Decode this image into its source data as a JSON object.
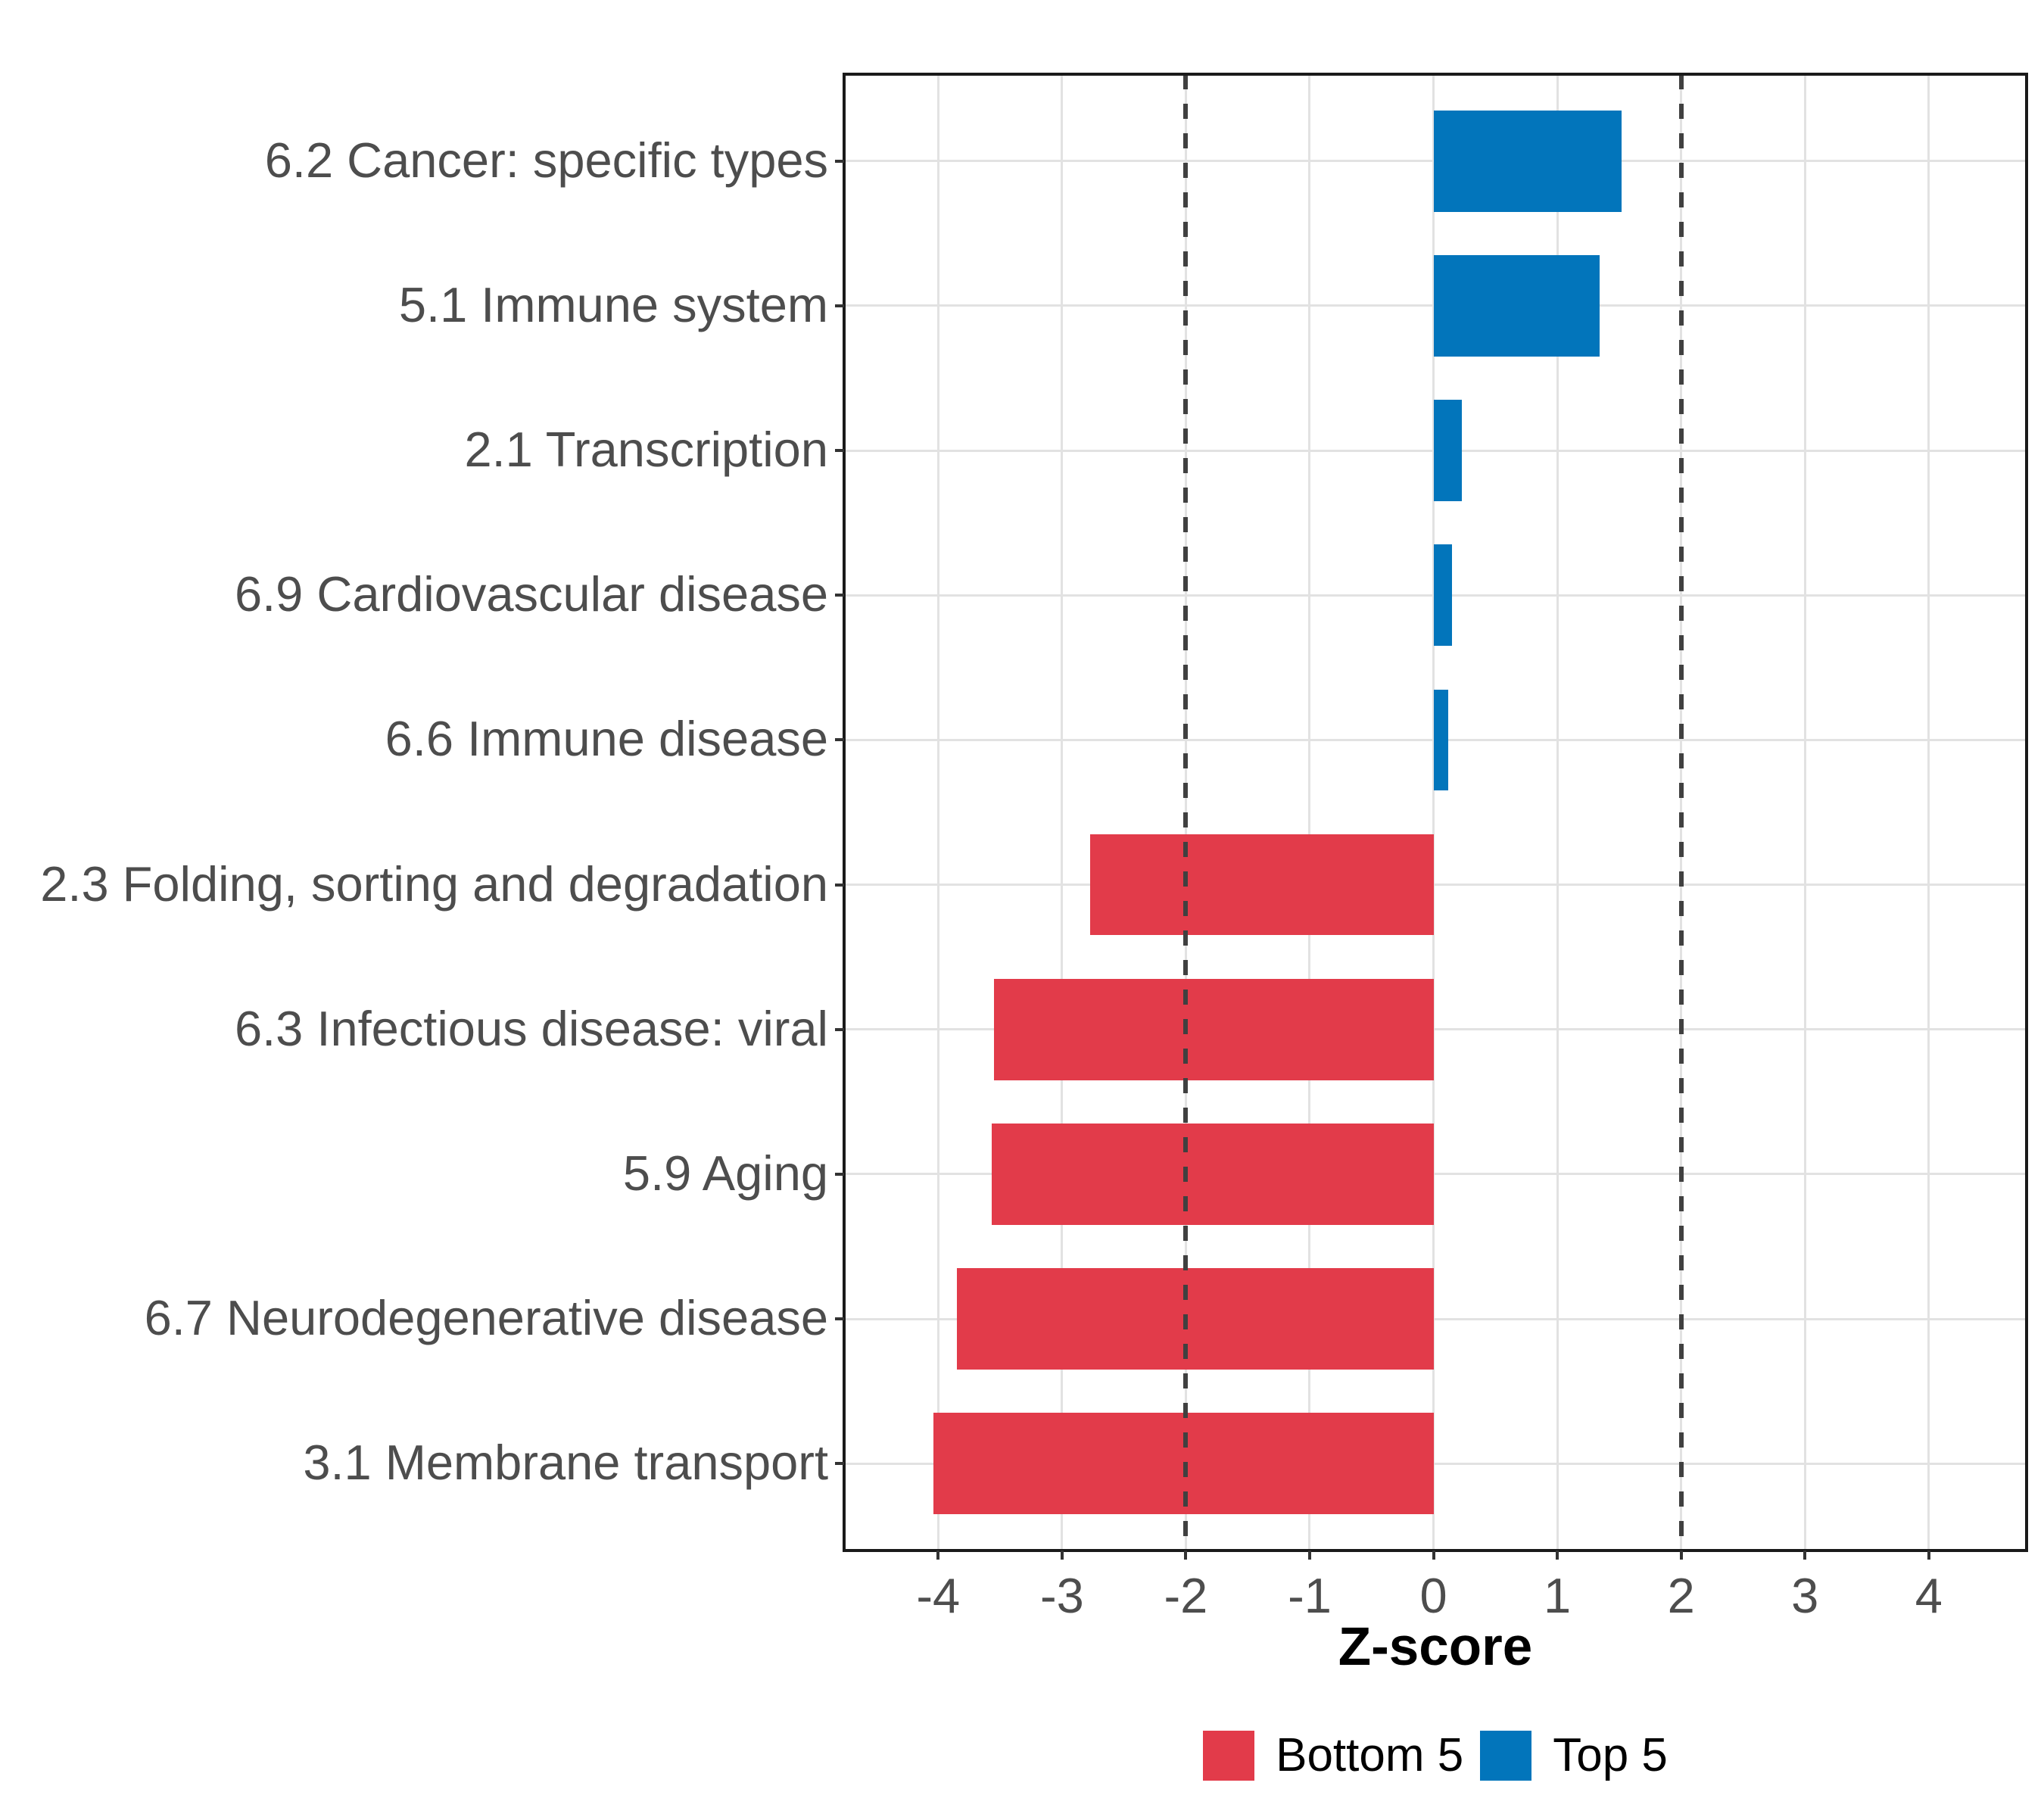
{
  "chart_data": {
    "type": "bar",
    "orientation": "horizontal",
    "title": "",
    "xlabel": "Z-score",
    "ylabel": "",
    "categories": [
      "6.2 Cancer: specific types",
      "5.1 Immune system",
      "2.1 Transcription",
      "6.9 Cardiovascular disease",
      "6.6 Immune disease",
      "2.3 Folding, sorting and degradation",
      "6.3 Infectious disease: viral",
      "5.9 Aging",
      "6.7 Neurodegenerative disease",
      "3.1 Membrane transport"
    ],
    "values": [
      1.52,
      1.34,
      0.23,
      0.15,
      0.12,
      -2.77,
      -3.55,
      -3.57,
      -3.85,
      -4.04
    ],
    "groups": [
      "Top 5",
      "Top 5",
      "Top 5",
      "Top 5",
      "Top 5",
      "Bottom 5",
      "Bottom 5",
      "Bottom 5",
      "Bottom 5",
      "Bottom 5"
    ],
    "x_ticks": [
      -4,
      -3,
      -2,
      -1,
      0,
      1,
      2,
      3,
      4
    ],
    "xlim": [
      -4.76,
      4.79
    ],
    "reference_lines_x": [
      -2,
      2
    ],
    "bar_width_fraction": 0.7,
    "grid": "major",
    "legend_position": "bottom",
    "legend": {
      "entries": [
        {
          "label": "Bottom 5",
          "color": "#E23B4A"
        },
        {
          "label": "Top 5",
          "color": "#0275BB"
        }
      ]
    }
  },
  "colors": {
    "bottom5": "#E23B4A",
    "top5": "#0275BB",
    "grid": "#E2E2E2",
    "panel_border": "#1A1A1A",
    "axis_text": "#4D4D4D",
    "axis_title": "#000000",
    "legend_text": "#000000",
    "reference_line": "#404040",
    "tick_mark": "#333333",
    "background": "#FFFFFF"
  }
}
